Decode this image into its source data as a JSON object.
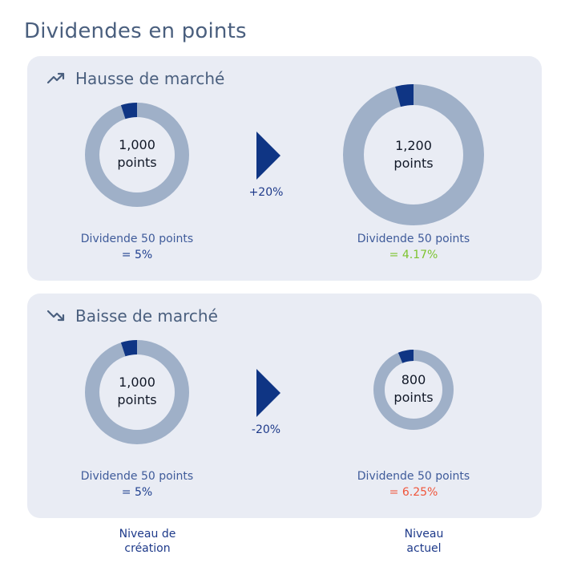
{
  "page": {
    "title": "Dividendes en points"
  },
  "colors": {
    "ring": "#9fb0c8",
    "slice": "#0f3584",
    "center": "#e9ecf4",
    "up": "#7dc42f",
    "down": "#f0553a"
  },
  "scenarios": [
    {
      "title": "Hausse de marché",
      "icon": "trend-up-icon",
      "change": "+20%",
      "start": {
        "points": 1000,
        "line1": "1,000",
        "line2": "points",
        "caption": "Dividende 50 points",
        "pct": "= 5%",
        "dividend_share": 0.05
      },
      "end": {
        "points": 1200,
        "line1": "1,200",
        "line2": "points",
        "caption": "Dividende 50 points",
        "pct": "= 4.17%",
        "dividend_share": 0.0417
      }
    },
    {
      "title": "Baisse de marché",
      "icon": "trend-down-icon",
      "change": "-20%",
      "start": {
        "points": 1000,
        "line1": "1,000",
        "line2": "points",
        "caption": "Dividende 50 points",
        "pct": "= 5%",
        "dividend_share": 0.05
      },
      "end": {
        "points": 800,
        "line1": "800",
        "line2": "points",
        "caption": "Dividende 50 points",
        "pct": "= 6.25%",
        "dividend_share": 0.0625
      }
    }
  ],
  "footer": {
    "creation": "Niveau de\ncréation",
    "current": "Niveau\nactuel"
  }
}
